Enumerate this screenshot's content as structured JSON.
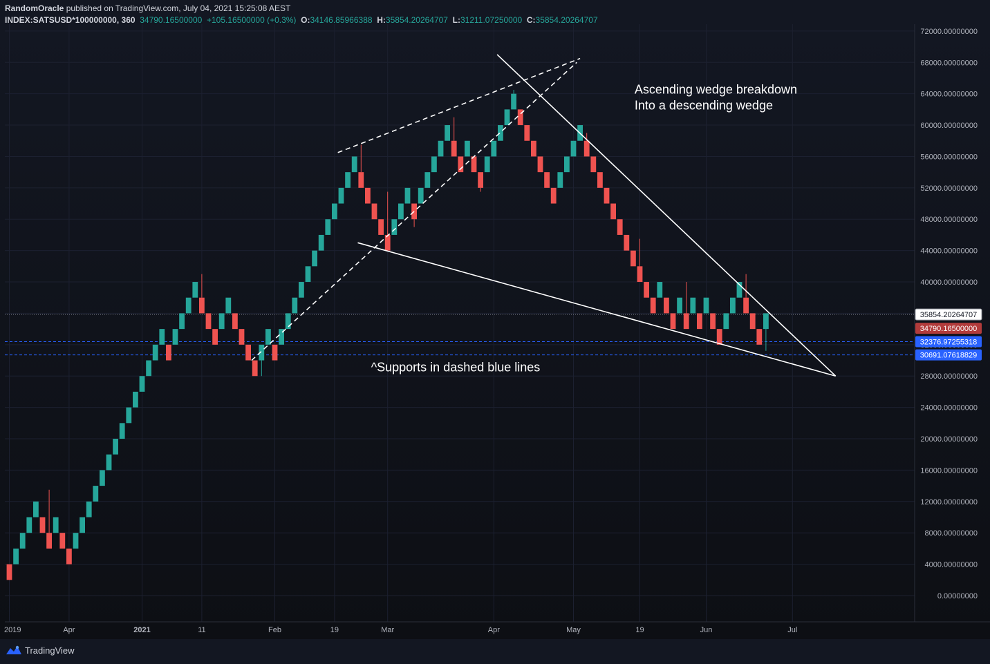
{
  "header": {
    "author": "RandomOracle",
    "published_text": "published on TradingView.com, July 04, 2021 15:25:08 AEST",
    "symbol": "INDEX:SATSUSD*100000000, 360",
    "last": "34790.16500000",
    "change": "+105.16500000 (+0.3%)",
    "o_label": "O:",
    "o": "34146.85966388",
    "h_label": "H:",
    "h": "35854.20264707",
    "l_label": "L:",
    "l": "31211.07250000",
    "c_label": "C:",
    "c": "35854.20264707"
  },
  "footer": {
    "brand": "TradingView",
    "brand_icon": "tradingview-logo-icon"
  },
  "colors": {
    "background": "#131722",
    "up": "#26a69a",
    "down": "#ef5350",
    "axis_text": "#b2b5be",
    "support_line": "#2962ff",
    "trendline": "#ffffff"
  },
  "chart_data": {
    "type": "renko",
    "box_size": 2000,
    "ylim": [
      -2000,
      72000
    ],
    "y_ticks": [
      0,
      4000,
      8000,
      12000,
      16000,
      20000,
      24000,
      28000,
      32000,
      36000,
      40000,
      44000,
      48000,
      52000,
      56000,
      60000,
      64000,
      68000,
      72000
    ],
    "y_tick_labels": [
      "0.00000000",
      "4000.00000000",
      "8000.00000000",
      "12000.00000000",
      "16000.00000000",
      "20000.00000000",
      "24000.00000000",
      "28000.00000000",
      "32000.00000000",
      "36000.00000000",
      "40000.00000000",
      "44000.00000000",
      "48000.00000000",
      "52000.00000000",
      "56000.00000000",
      "60000.00000000",
      "64000.00000000",
      "68000.00000000",
      "72000.00000000"
    ],
    "x_ticks": [
      {
        "label": "2019",
        "bar": 0
      },
      {
        "label": "Apr",
        "bar": 9
      },
      {
        "label": "2021",
        "bar": 20
      },
      {
        "label": "11",
        "bar": 29
      },
      {
        "label": "Feb",
        "bar": 40
      },
      {
        "label": "19",
        "bar": 49
      },
      {
        "label": "Mar",
        "bar": 57
      },
      {
        "label": "Apr",
        "bar": 73
      },
      {
        "label": "May",
        "bar": 85
      },
      {
        "label": "19",
        "bar": 95
      },
      {
        "label": "Jun",
        "bar": 105
      },
      {
        "label": "Jul",
        "bar": 118
      }
    ],
    "bricks": [
      {
        "low": 2000,
        "dir": "down",
        "wick_low": 3000
      },
      {
        "low": 4000,
        "dir": "up"
      },
      {
        "low": 6000,
        "dir": "up"
      },
      {
        "low": 8000,
        "dir": "up"
      },
      {
        "low": 10000,
        "dir": "up"
      },
      {
        "low": 8000,
        "dir": "down"
      },
      {
        "low": 6000,
        "dir": "down",
        "wick_high": 13500
      },
      {
        "low": 8000,
        "dir": "up"
      },
      {
        "low": 6000,
        "dir": "down"
      },
      {
        "low": 4000,
        "dir": "down",
        "wick_low": 4500
      },
      {
        "low": 6000,
        "dir": "up"
      },
      {
        "low": 8000,
        "dir": "up"
      },
      {
        "low": 10000,
        "dir": "up"
      },
      {
        "low": 12000,
        "dir": "up"
      },
      {
        "low": 14000,
        "dir": "up"
      },
      {
        "low": 16000,
        "dir": "up"
      },
      {
        "low": 18000,
        "dir": "up"
      },
      {
        "low": 20000,
        "dir": "up"
      },
      {
        "low": 22000,
        "dir": "up"
      },
      {
        "low": 24000,
        "dir": "up"
      },
      {
        "low": 26000,
        "dir": "up"
      },
      {
        "low": 28000,
        "dir": "up"
      },
      {
        "low": 30000,
        "dir": "up"
      },
      {
        "low": 32000,
        "dir": "up"
      },
      {
        "low": 30000,
        "dir": "down"
      },
      {
        "low": 32000,
        "dir": "up"
      },
      {
        "low": 34000,
        "dir": "up"
      },
      {
        "low": 36000,
        "dir": "up"
      },
      {
        "low": 38000,
        "dir": "up"
      },
      {
        "low": 36000,
        "dir": "down",
        "wick_high": 41000
      },
      {
        "low": 34000,
        "dir": "down"
      },
      {
        "low": 32000,
        "dir": "down",
        "wick_low": 32500
      },
      {
        "low": 34000,
        "dir": "up"
      },
      {
        "low": 36000,
        "dir": "up"
      },
      {
        "low": 34000,
        "dir": "down"
      },
      {
        "low": 32000,
        "dir": "down"
      },
      {
        "low": 30000,
        "dir": "down"
      },
      {
        "low": 28000,
        "dir": "down"
      },
      {
        "low": 30000,
        "dir": "up",
        "wick_low": 28000
      },
      {
        "low": 32000,
        "dir": "up"
      },
      {
        "low": 30000,
        "dir": "down"
      },
      {
        "low": 32000,
        "dir": "up"
      },
      {
        "low": 34000,
        "dir": "up"
      },
      {
        "low": 36000,
        "dir": "up"
      },
      {
        "low": 38000,
        "dir": "up"
      },
      {
        "low": 40000,
        "dir": "up"
      },
      {
        "low": 42000,
        "dir": "up"
      },
      {
        "low": 44000,
        "dir": "up"
      },
      {
        "low": 46000,
        "dir": "up"
      },
      {
        "low": 48000,
        "dir": "up"
      },
      {
        "low": 50000,
        "dir": "up"
      },
      {
        "low": 52000,
        "dir": "up"
      },
      {
        "low": 54000,
        "dir": "up"
      },
      {
        "low": 52000,
        "dir": "down",
        "wick_high": 57500
      },
      {
        "low": 50000,
        "dir": "down"
      },
      {
        "low": 48000,
        "dir": "down"
      },
      {
        "low": 46000,
        "dir": "down"
      },
      {
        "low": 44000,
        "dir": "down",
        "wick_high": 51500
      },
      {
        "low": 46000,
        "dir": "up"
      },
      {
        "low": 48000,
        "dir": "up"
      },
      {
        "low": 50000,
        "dir": "up"
      },
      {
        "low": 48000,
        "dir": "down",
        "wick_low": 47000
      },
      {
        "low": 50000,
        "dir": "up"
      },
      {
        "low": 52000,
        "dir": "up"
      },
      {
        "low": 54000,
        "dir": "up"
      },
      {
        "low": 56000,
        "dir": "up"
      },
      {
        "low": 58000,
        "dir": "up"
      },
      {
        "low": 56000,
        "dir": "down",
        "wick_high": 61000
      },
      {
        "low": 54000,
        "dir": "down"
      },
      {
        "low": 56000,
        "dir": "up"
      },
      {
        "low": 54000,
        "dir": "down"
      },
      {
        "low": 52000,
        "dir": "down",
        "wick_low": 51500
      },
      {
        "low": 54000,
        "dir": "up"
      },
      {
        "low": 56000,
        "dir": "up"
      },
      {
        "low": 58000,
        "dir": "up"
      },
      {
        "low": 60000,
        "dir": "up"
      },
      {
        "low": 62000,
        "dir": "up",
        "wick_high": 64500
      },
      {
        "low": 60000,
        "dir": "down"
      },
      {
        "low": 58000,
        "dir": "down"
      },
      {
        "low": 56000,
        "dir": "down"
      },
      {
        "low": 54000,
        "dir": "down"
      },
      {
        "low": 52000,
        "dir": "down"
      },
      {
        "low": 50000,
        "dir": "down"
      },
      {
        "low": 52000,
        "dir": "up"
      },
      {
        "low": 54000,
        "dir": "up"
      },
      {
        "low": 56000,
        "dir": "up"
      },
      {
        "low": 58000,
        "dir": "up"
      },
      {
        "low": 56000,
        "dir": "down",
        "wick_high": 59000
      },
      {
        "low": 54000,
        "dir": "down"
      },
      {
        "low": 52000,
        "dir": "down"
      },
      {
        "low": 50000,
        "dir": "down"
      },
      {
        "low": 48000,
        "dir": "down"
      },
      {
        "low": 46000,
        "dir": "down"
      },
      {
        "low": 44000,
        "dir": "down"
      },
      {
        "low": 42000,
        "dir": "down"
      },
      {
        "low": 40000,
        "dir": "down",
        "wick_high": 45500
      },
      {
        "low": 38000,
        "dir": "down"
      },
      {
        "low": 36000,
        "dir": "down"
      },
      {
        "low": 38000,
        "dir": "up"
      },
      {
        "low": 36000,
        "dir": "down"
      },
      {
        "low": 34000,
        "dir": "down"
      },
      {
        "low": 36000,
        "dir": "up"
      },
      {
        "low": 34000,
        "dir": "down",
        "wick_high": 40000
      },
      {
        "low": 36000,
        "dir": "up"
      },
      {
        "low": 34000,
        "dir": "down"
      },
      {
        "low": 36000,
        "dir": "up"
      },
      {
        "low": 34000,
        "dir": "down"
      },
      {
        "low": 32000,
        "dir": "down"
      },
      {
        "low": 34000,
        "dir": "up"
      },
      {
        "low": 36000,
        "dir": "up"
      },
      {
        "low": 38000,
        "dir": "up"
      },
      {
        "low": 36000,
        "dir": "down",
        "wick_high": 41000
      },
      {
        "low": 34000,
        "dir": "down"
      },
      {
        "low": 32000,
        "dir": "down"
      },
      {
        "low": 34000,
        "dir": "up",
        "wick_low": 31211
      }
    ],
    "price_labels": [
      {
        "value": 35854.20264707,
        "text": "35854.20264707",
        "style": "close"
      },
      {
        "value": 34790.165,
        "text": "34790.16500000",
        "style": "last"
      },
      {
        "value": 32376.97255318,
        "text": "32376.97255318",
        "style": "support"
      },
      {
        "value": 30691.07618829,
        "text": "30691.07618829",
        "style": "support"
      }
    ],
    "support_lines": [
      32376.97255318,
      30691.07618829
    ],
    "trendlines": [
      {
        "name": "ascending-wedge-upper",
        "dashed": true,
        "from": [
          49.5,
          56500
        ],
        "to": [
          86,
          68500
        ]
      },
      {
        "name": "ascending-wedge-lower",
        "dashed": true,
        "from": [
          36.5,
          30000
        ],
        "to": [
          85.5,
          68000
        ]
      },
      {
        "name": "descending-wedge-upper",
        "dashed": false,
        "from": [
          73.5,
          69000
        ],
        "to": [
          124.5,
          28000
        ]
      },
      {
        "name": "descending-wedge-lower",
        "dashed": false,
        "from": [
          52.5,
          45000
        ],
        "to": [
          124.5,
          28000
        ]
      }
    ],
    "annotations": [
      {
        "name": "wedge-annotation-line-1",
        "text": "Ascending wedge breakdown",
        "bar": 94.2,
        "value": 64000
      },
      {
        "name": "wedge-annotation-line-2",
        "text": "Into a descending wedge",
        "bar": 94.2,
        "value": 62000
      },
      {
        "name": "support-annotation",
        "text": "^Supports in dashed blue lines",
        "bar": 54.5,
        "value": 28600
      }
    ]
  }
}
